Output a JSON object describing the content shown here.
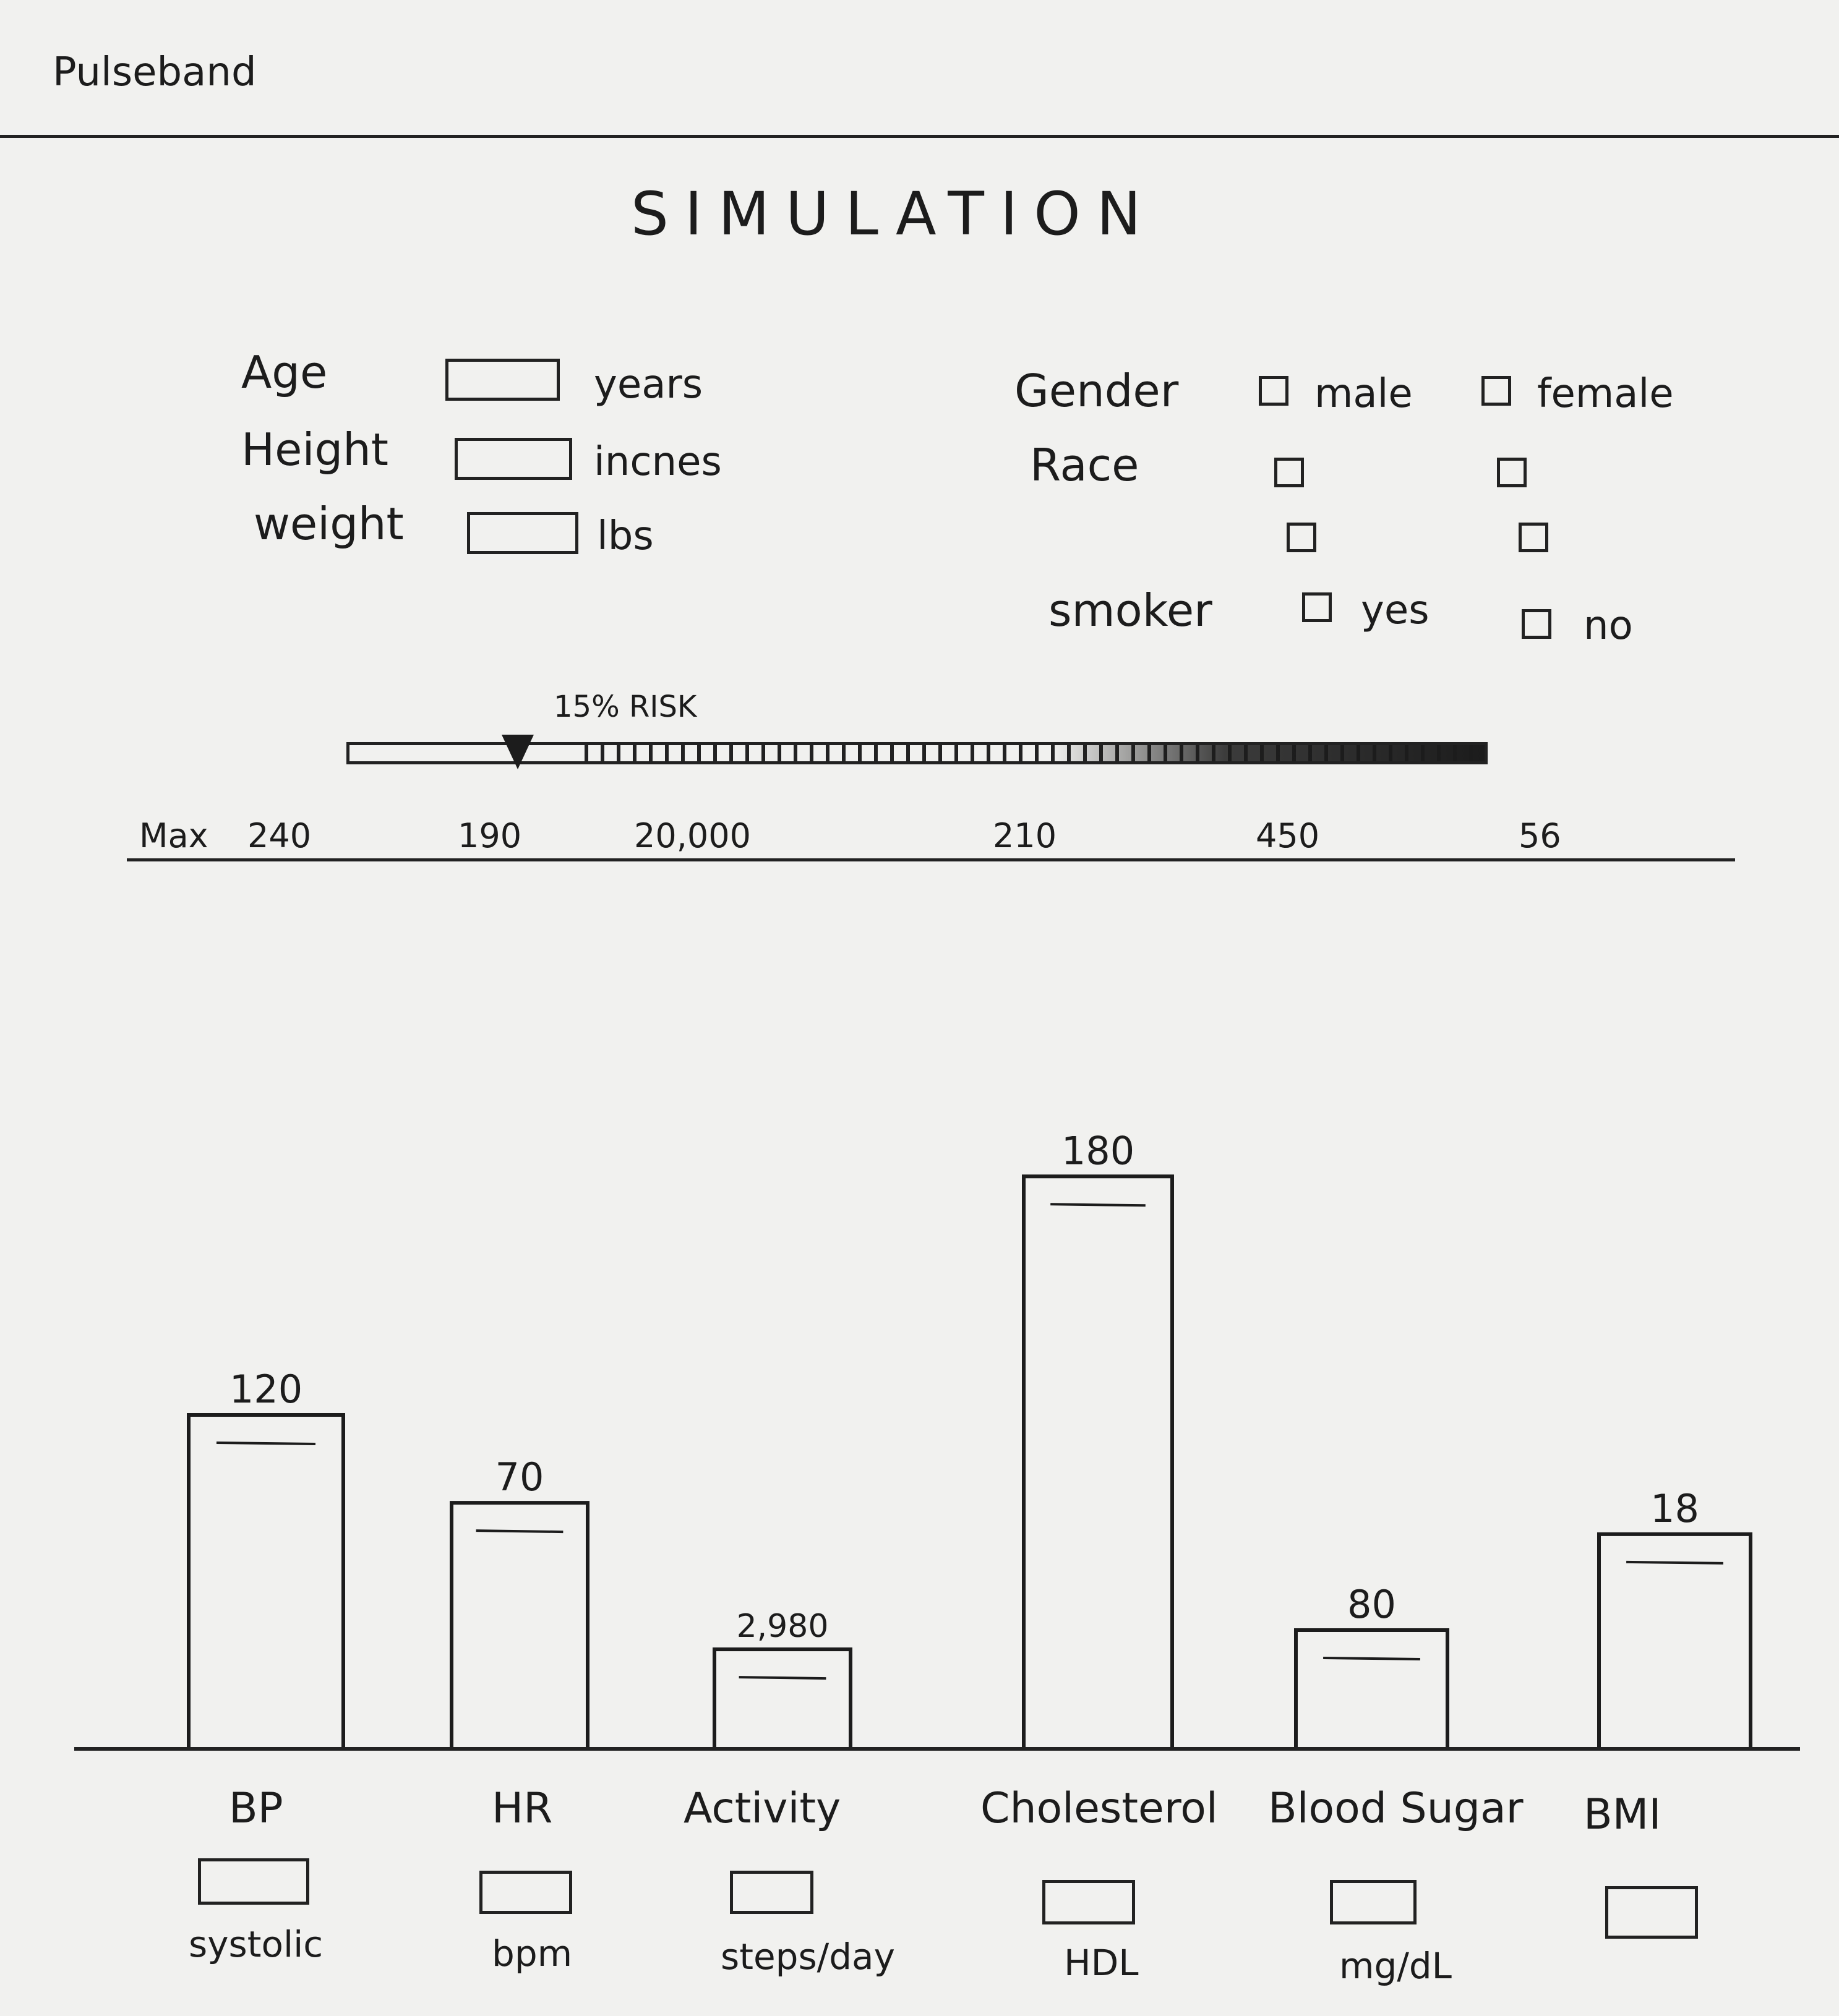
{
  "app": {
    "brand": "Pulseband"
  },
  "page": {
    "title": "SIMULATION"
  },
  "profile": {
    "age": {
      "label": "Age",
      "unit": "years",
      "value": ""
    },
    "height": {
      "label": "Height",
      "unit": "incnes",
      "value": ""
    },
    "weight": {
      "label": "weight",
      "unit": "lbs",
      "value": ""
    },
    "gender": {
      "label": "Gender",
      "options": [
        "male",
        "female"
      ],
      "selected": null
    },
    "race": {
      "label": "Race",
      "options": [
        "",
        "",
        "",
        ""
      ],
      "selected": null
    },
    "smoker": {
      "label": "smoker",
      "options": [
        "yes",
        "no"
      ],
      "selected": null
    }
  },
  "risk": {
    "label": "15% RISK",
    "value_percent": 15
  },
  "max_row": {
    "label": "Max",
    "values": [
      "240",
      "190",
      "20,000",
      "210",
      "450",
      "56"
    ]
  },
  "chart_data": {
    "type": "bar",
    "categories": [
      "BP",
      "HR",
      "Activity",
      "Cholesterol",
      "Blood Sugar",
      "BMI"
    ],
    "values": [
      120,
      70,
      2980,
      180,
      80,
      18
    ],
    "value_labels": [
      "120",
      "70",
      "2,980",
      "180",
      "80",
      "18"
    ],
    "max_values": [
      240,
      190,
      20000,
      210,
      450,
      56
    ],
    "units": [
      "systolic",
      "bpm",
      "steps/day",
      "HDL",
      "mg/dL",
      ""
    ]
  },
  "colors": {
    "ink": "#1c1c1c",
    "paper": "#f1f1ef"
  }
}
